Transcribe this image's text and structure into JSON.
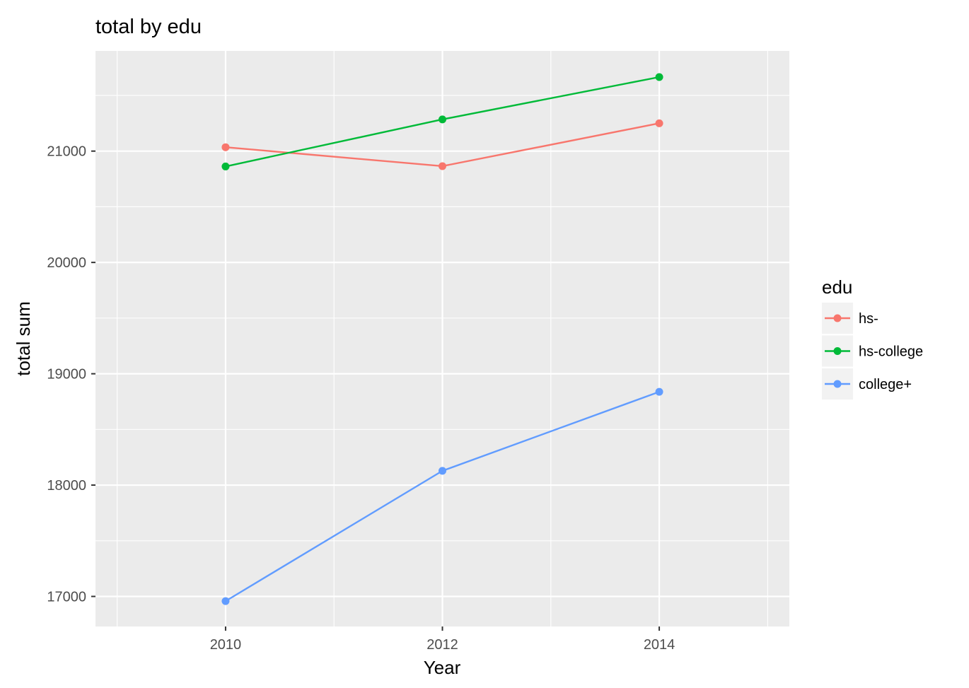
{
  "chart_data": {
    "type": "line",
    "title": "total by edu",
    "xlabel": "Year",
    "ylabel": "total sum",
    "x": [
      2010,
      2012,
      2014
    ],
    "xlim": [
      2008.8,
      2015.2
    ],
    "ylim": [
      16730,
      21900
    ],
    "x_ticks": [
      2010,
      2012,
      2014
    ],
    "y_ticks": [
      17000,
      18000,
      19000,
      20000,
      21000
    ],
    "grid": true,
    "legend": {
      "title": "edu",
      "placement": "right"
    },
    "series": [
      {
        "name": "hs-",
        "color": "#F8766D",
        "values": [
          21035,
          20865,
          21250
        ]
      },
      {
        "name": "hs-college",
        "color": "#00BA38",
        "values": [
          20862,
          21285,
          21665
        ]
      },
      {
        "name": "college+",
        "color": "#619CFF",
        "values": [
          16958,
          18128,
          18838
        ]
      }
    ]
  }
}
